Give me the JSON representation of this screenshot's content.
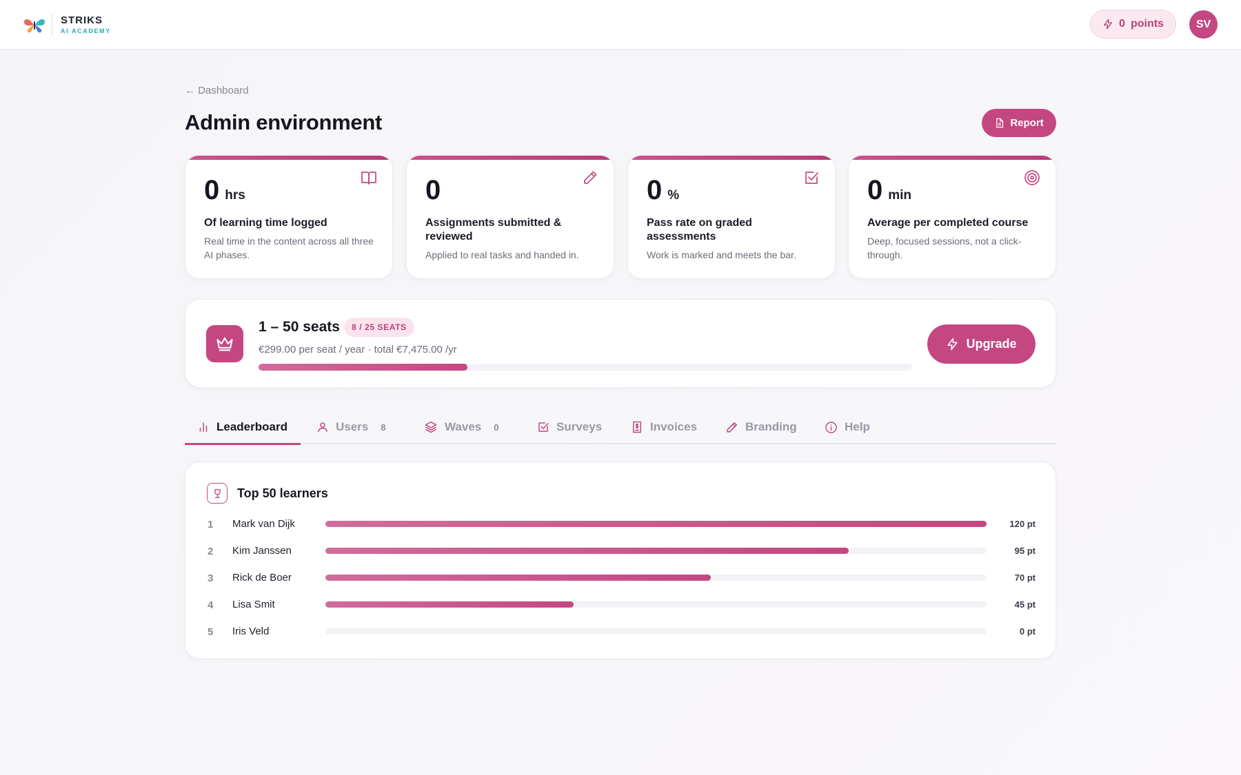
{
  "header": {
    "brand_name": "STRIKS",
    "brand_sub": "AI ACADEMY",
    "points_value": "0",
    "points_label": "points",
    "avatar_initials": "SV"
  },
  "page": {
    "back_label": "← Dashboard",
    "title": "Admin environment",
    "report_label": "Report"
  },
  "stats": [
    {
      "value": "0",
      "unit": "hrs",
      "title": "Of learning time logged",
      "desc": "Real time in the content across all three AI phases.",
      "icon": "book-icon"
    },
    {
      "value": "0",
      "unit": "",
      "title": "Assignments submitted & reviewed",
      "desc": "Applied to real tasks and handed in.",
      "icon": "pencil-icon"
    },
    {
      "value": "0",
      "unit": "%",
      "title": "Pass rate on graded assessments",
      "desc": "Work is marked and meets the bar.",
      "icon": "checkbox-icon"
    },
    {
      "value": "0",
      "unit": "min",
      "title": "Average per completed course",
      "desc": "Deep, focused sessions, not a click-through.",
      "icon": "target-icon"
    }
  ],
  "plan": {
    "title": "1 – 50 seats",
    "badge": "8 / 25 SEATS",
    "price": "€299.00 per seat / year · total €7,475.00 /yr",
    "seats_used": 8,
    "seats_total": 25,
    "upgrade_label": "Upgrade"
  },
  "tabs": [
    {
      "label": "Leaderboard",
      "count": "",
      "icon": "bar-chart-icon",
      "active": true
    },
    {
      "label": "Users",
      "count": "8",
      "icon": "user-icon"
    },
    {
      "label": "Waves",
      "count": "0",
      "icon": "layers-icon"
    },
    {
      "label": "Surveys",
      "count": "",
      "icon": "checkbox-icon"
    },
    {
      "label": "Invoices",
      "count": "",
      "icon": "invoice-icon"
    },
    {
      "label": "Branding",
      "count": "",
      "icon": "pencil-icon"
    },
    {
      "label": "Help",
      "count": "",
      "icon": "info-icon"
    }
  ],
  "leaderboard": {
    "title": "Top 50 learners",
    "max_points": 120,
    "rows": [
      {
        "rank": "1",
        "name": "Mark van Dijk",
        "points": 120,
        "points_label": "120 pt"
      },
      {
        "rank": "2",
        "name": "Kim Janssen",
        "points": 95,
        "points_label": "95 pt"
      },
      {
        "rank": "3",
        "name": "Rick de Boer",
        "points": 70,
        "points_label": "70 pt"
      },
      {
        "rank": "4",
        "name": "Lisa Smit",
        "points": 45,
        "points_label": "45 pt"
      },
      {
        "rank": "5",
        "name": "Iris Veld",
        "points": 0,
        "points_label": "0 pt"
      }
    ]
  },
  "colors": {
    "accent": "#c44782",
    "accent_light": "#fbe3ee",
    "brand_teal": "#2fa8b8"
  }
}
